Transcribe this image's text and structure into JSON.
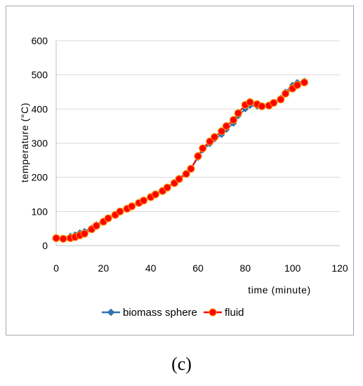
{
  "chart_data": {
    "type": "line",
    "xlabel": "time (minute)",
    "ylabel": "temperature (°C)",
    "xlim": [
      0,
      120
    ],
    "ylim": [
      0,
      600
    ],
    "xticks": [
      0,
      20,
      40,
      60,
      80,
      100,
      120
    ],
    "yticks": [
      0,
      100,
      200,
      300,
      400,
      500,
      600
    ],
    "grid": "horizontal",
    "legend_position": "bottom",
    "series": [
      {
        "name": "biomass sphere",
        "color": "#2e75b6",
        "marker": "diamond",
        "x": [
          0,
          3,
          6,
          8,
          10,
          12,
          15,
          17,
          20,
          22,
          25,
          27,
          30,
          32,
          35,
          37,
          40,
          42,
          45,
          47,
          50,
          52,
          55,
          57,
          60,
          62,
          65,
          67,
          70,
          72,
          75,
          77,
          80,
          82,
          85,
          87,
          90,
          92,
          95,
          97,
          100,
          102,
          105
        ],
        "y": [
          22,
          22,
          28,
          32,
          38,
          42,
          52,
          62,
          72,
          80,
          90,
          100,
          108,
          115,
          125,
          133,
          143,
          152,
          162,
          172,
          185,
          198,
          212,
          225,
          258,
          280,
          298,
          312,
          325,
          340,
          358,
          380,
          400,
          410,
          408,
          408,
          412,
          420,
          432,
          450,
          470,
          478,
          482
        ]
      },
      {
        "name": "fluid",
        "color": "#ff0000",
        "marker": "circle",
        "x": [
          0,
          3,
          6,
          8,
          10,
          12,
          15,
          17,
          20,
          22,
          25,
          27,
          30,
          32,
          35,
          37,
          40,
          42,
          45,
          47,
          50,
          52,
          55,
          57,
          60,
          62,
          65,
          67,
          70,
          72,
          75,
          77,
          80,
          82,
          85,
          87,
          90,
          92,
          95,
          97,
          100,
          102,
          105
        ],
        "y": [
          22,
          20,
          22,
          25,
          30,
          35,
          48,
          58,
          70,
          80,
          90,
          100,
          108,
          115,
          125,
          132,
          142,
          150,
          160,
          170,
          183,
          195,
          210,
          225,
          262,
          285,
          305,
          318,
          335,
          350,
          368,
          388,
          412,
          420,
          414,
          408,
          410,
          418,
          428,
          445,
          460,
          470,
          478
        ]
      }
    ]
  },
  "caption": "(c)"
}
